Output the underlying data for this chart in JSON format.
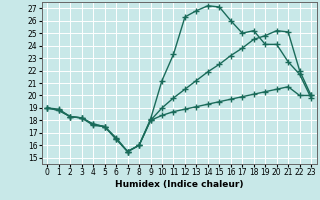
{
  "bg_color": "#c8e8e8",
  "grid_color": "#ffffff",
  "line_color": "#1a6b5a",
  "line_width": 1.0,
  "marker": "+",
  "marker_size": 4,
  "marker_ew": 1.0,
  "xlabel": "Humidex (Indice chaleur)",
  "xlabel_fontsize": 6.5,
  "tick_fontsize": 5.5,
  "xlim": [
    -0.5,
    23.5
  ],
  "ylim": [
    14.5,
    27.5
  ],
  "yticks": [
    15,
    16,
    17,
    18,
    19,
    20,
    21,
    22,
    23,
    24,
    25,
    26,
    27
  ],
  "xticks": [
    0,
    1,
    2,
    3,
    4,
    5,
    6,
    7,
    8,
    9,
    10,
    11,
    12,
    13,
    14,
    15,
    16,
    17,
    18,
    19,
    20,
    21,
    22,
    23
  ],
  "series": [
    {
      "x": [
        0,
        1,
        2,
        3,
        4,
        5,
        6,
        7,
        8,
        9,
        10,
        11,
        12,
        13,
        14,
        15,
        16,
        17,
        18,
        19,
        20,
        21,
        22,
        23
      ],
      "y": [
        19.0,
        18.9,
        18.3,
        18.2,
        17.6,
        17.5,
        16.6,
        15.5,
        16.0,
        18.1,
        21.2,
        23.3,
        26.3,
        26.8,
        27.2,
        27.1,
        26.0,
        25.0,
        25.2,
        24.1,
        24.1,
        22.7,
        21.7,
        19.8
      ]
    },
    {
      "x": [
        0,
        1,
        2,
        3,
        4,
        5,
        6,
        7,
        8,
        9,
        10,
        11,
        12,
        13,
        14,
        15,
        16,
        17,
        18,
        19,
        20,
        21,
        22,
        23
      ],
      "y": [
        19.0,
        18.8,
        18.3,
        18.2,
        17.7,
        17.5,
        16.5,
        15.5,
        16.0,
        18.0,
        19.0,
        19.8,
        20.5,
        21.2,
        21.9,
        22.5,
        23.2,
        23.8,
        24.5,
        24.8,
        25.2,
        25.1,
        22.0,
        20.0
      ]
    },
    {
      "x": [
        0,
        1,
        2,
        3,
        4,
        5,
        6,
        7,
        8,
        9,
        10,
        11,
        12,
        13,
        14,
        15,
        16,
        17,
        18,
        19,
        20,
        21,
        22,
        23
      ],
      "y": [
        19.0,
        18.8,
        18.3,
        18.2,
        17.7,
        17.5,
        16.5,
        15.5,
        16.0,
        18.0,
        18.4,
        18.7,
        18.9,
        19.1,
        19.3,
        19.5,
        19.7,
        19.9,
        20.1,
        20.3,
        20.5,
        20.7,
        20.0,
        20.0
      ]
    }
  ]
}
